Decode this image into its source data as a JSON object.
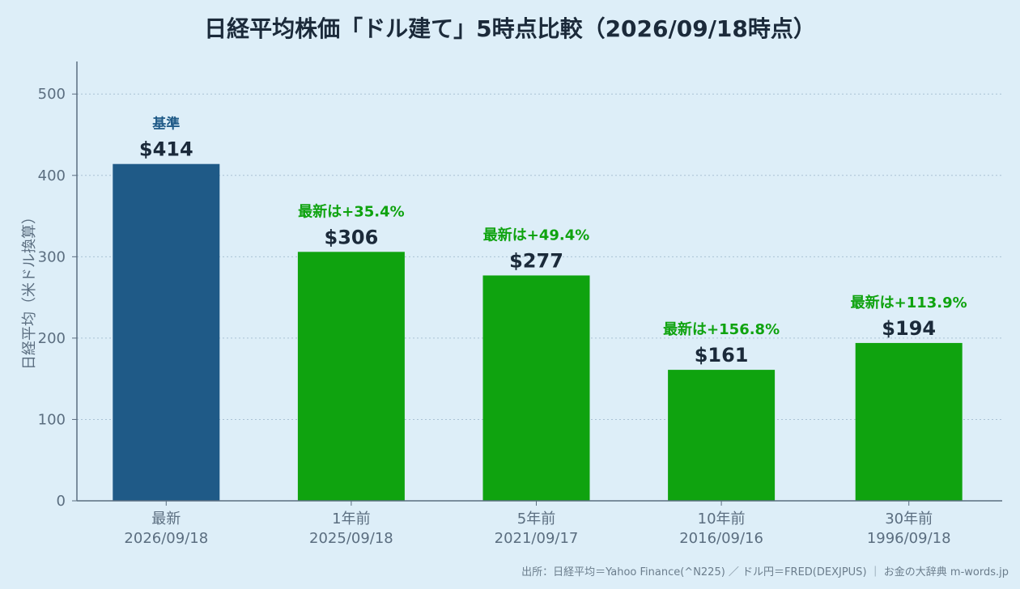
{
  "chart_data": {
    "type": "bar",
    "title": "日経平均株価「ドル建て」5時点比較（2026/09/18時点）",
    "ylabel": "日経平均（米ドル換算）",
    "xlabel": "",
    "ylim": [
      0,
      540
    ],
    "yticks": [
      0,
      100,
      200,
      300,
      400,
      500
    ],
    "grid": true,
    "categories": [
      [
        "最新",
        "2026/09/18"
      ],
      [
        "1年前",
        "2025/09/18"
      ],
      [
        "5年前",
        "2021/09/17"
      ],
      [
        "10年前",
        "2016/09/16"
      ],
      [
        "30年前",
        "1996/09/18"
      ]
    ],
    "values": [
      414,
      306,
      277,
      161,
      194
    ],
    "value_labels": [
      "$414",
      "$306",
      "$277",
      "$161",
      "$194"
    ],
    "annotations": [
      "基準",
      "最新は+35.4%",
      "最新は+49.4%",
      "最新は+156.8%",
      "最新は+113.9%"
    ],
    "colors": {
      "base_bar": "#1f5a87",
      "compare_bar": "#0fa30f",
      "base_note": "#1f5a87",
      "compare_note": "#0fa30f",
      "axis": "#5b6e80",
      "grid": "#a9c2d4",
      "value_text": "#1b2a3a",
      "tick_text": "#5b6e80"
    }
  },
  "footer": "出所：日経平均＝Yahoo Finance(^N225) ／ ドル円＝FRED(DEXJPUS) ｜ お金の大辞典 m-words.jp"
}
